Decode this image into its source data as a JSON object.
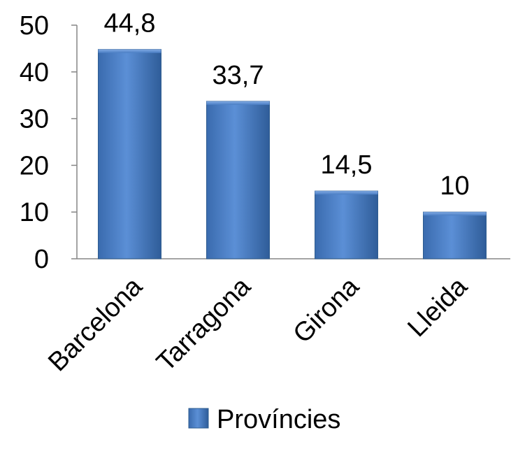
{
  "chart_data": {
    "type": "bar",
    "categories": [
      "Barcelona",
      "Tarragona",
      "Girona",
      "Lleida"
    ],
    "series": [
      {
        "name": "Províncies",
        "values": [
          44.8,
          33.7,
          14.5,
          10
        ]
      }
    ],
    "data_labels": [
      "44,8",
      "33,7",
      "14,5",
      "10"
    ],
    "y_ticks": [
      0,
      10,
      20,
      30,
      40,
      50
    ],
    "ylim": [
      0,
      50
    ],
    "grid": false,
    "legend_position": "bottom",
    "bar_color": "#4F81BD",
    "bar_edge_color": "#2E5C8F"
  }
}
